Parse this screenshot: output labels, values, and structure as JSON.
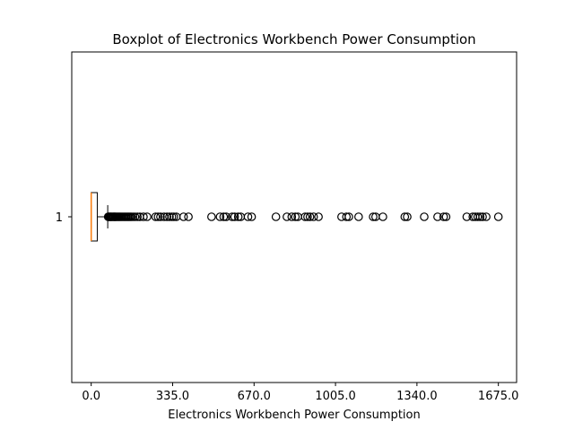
{
  "chart_data": {
    "type": "boxplot",
    "orientation": "horizontal",
    "title": "Boxplot of Electronics Workbench Power Consumption",
    "xlabel": "Electronics Workbench Power Consumption",
    "ylabel": "",
    "xlim": [
      -80,
      1750
    ],
    "xticks": [
      0,
      335,
      670,
      1005,
      1340,
      1675
    ],
    "xtick_labels": [
      "0.0",
      "335.0",
      "670.0",
      "1005.0",
      "1340.0",
      "1675.0"
    ],
    "ytick_labels": [
      "1"
    ],
    "grid": false,
    "series": [
      {
        "category": "1",
        "min": 0,
        "q1": 0,
        "median": 0,
        "q3": 25,
        "max": 68,
        "outliers": [
          70,
          72,
          75,
          78,
          80,
          83,
          86,
          90,
          93,
          97,
          100,
          104,
          108,
          112,
          116,
          120,
          125,
          130,
          135,
          140,
          145,
          150,
          155,
          160,
          165,
          172,
          180,
          190,
          200,
          215,
          230,
          265,
          275,
          285,
          300,
          312,
          322,
          332,
          340,
          350,
          380,
          400,
          495,
          530,
          545,
          555,
          580,
          590,
          605,
          615,
          645,
          660,
          760,
          805,
          825,
          840,
          850,
          880,
          890,
          900,
          915,
          935,
          1030,
          1050,
          1060,
          1100,
          1160,
          1170,
          1200,
          1290,
          1300,
          1370,
          1425,
          1450,
          1460,
          1545,
          1570,
          1580,
          1590,
          1600,
          1610,
          1625,
          1675
        ]
      }
    ]
  }
}
